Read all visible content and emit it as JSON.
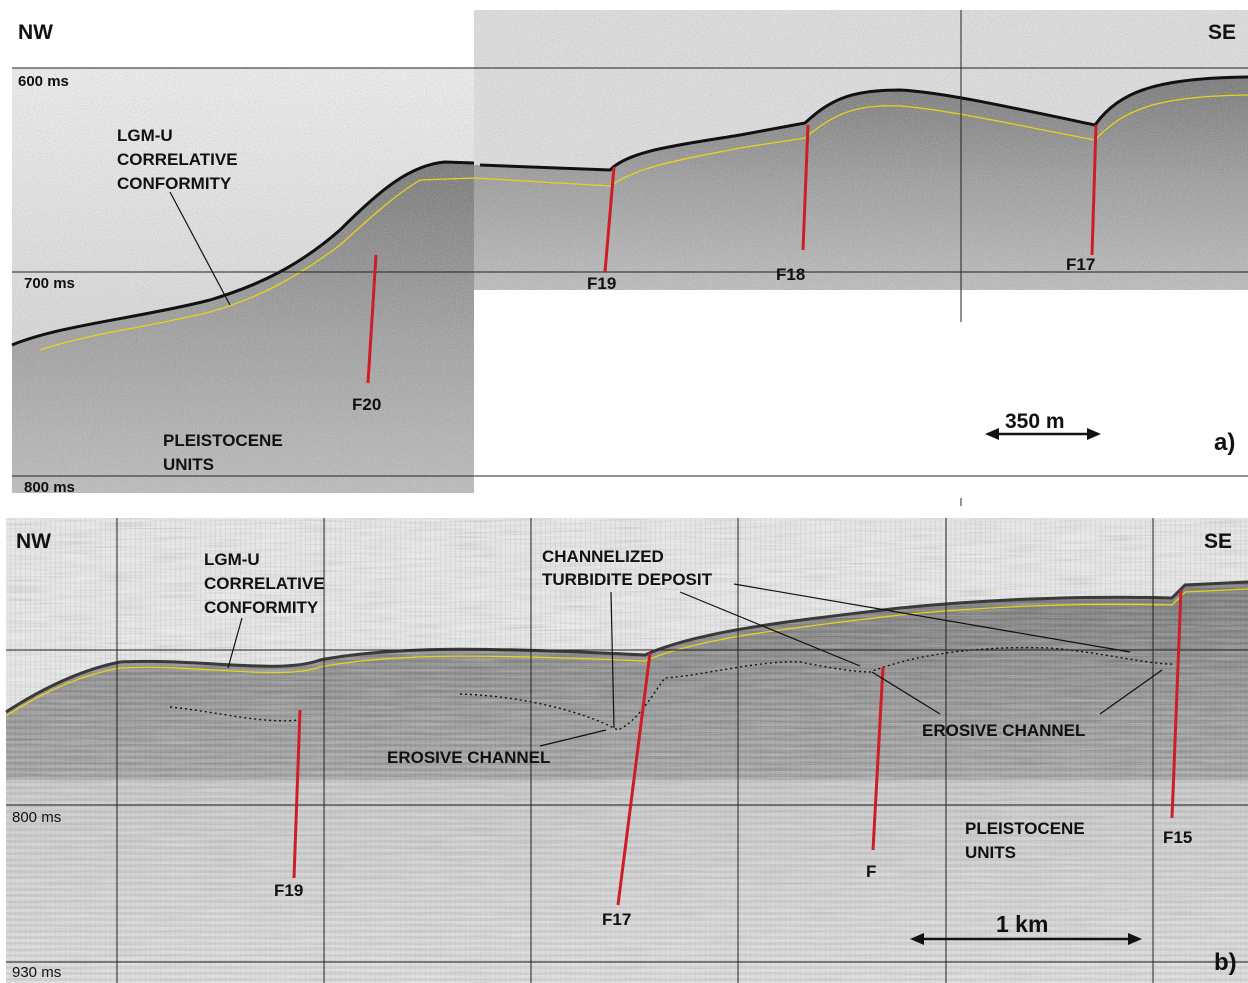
{
  "panel_a": {
    "left_direction": "NW",
    "right_direction": "SE",
    "time_600": "600 ms",
    "time_700": "700 ms",
    "time_800": "800 ms",
    "horizon_label": [
      "LGM-U",
      "CORRELATIVE",
      "CONFORMITY"
    ],
    "unit_label": [
      "PLEISTOCENE",
      "UNITS"
    ],
    "faults": [
      "F20",
      "F19",
      "F18",
      "F17"
    ],
    "scale_label": "350 m",
    "panel_label": "a)"
  },
  "panel_b": {
    "left_direction": "NW",
    "right_direction": "SE",
    "time_800": "800 ms",
    "time_930": "930 ms",
    "horizon_label": [
      "LGM-U",
      "CORRELATIVE",
      "CONFORMITY"
    ],
    "turbidite_label": [
      "CHANNELIZED",
      "TURBIDITE DEPOSIT"
    ],
    "erosive_left": "EROSIVE CHANNEL",
    "erosive_right": "EROSIVE CHANNEL",
    "unit_label": [
      "PLEISTOCENE",
      "UNITS"
    ],
    "faults": [
      "F19",
      "F17",
      "F",
      "F15"
    ],
    "scale_label": "1 km",
    "panel_label": "b)"
  },
  "colors": {
    "fault_red": "#d01c24",
    "horizon_yellow": "#e8d21a",
    "ink": "#111111"
  }
}
